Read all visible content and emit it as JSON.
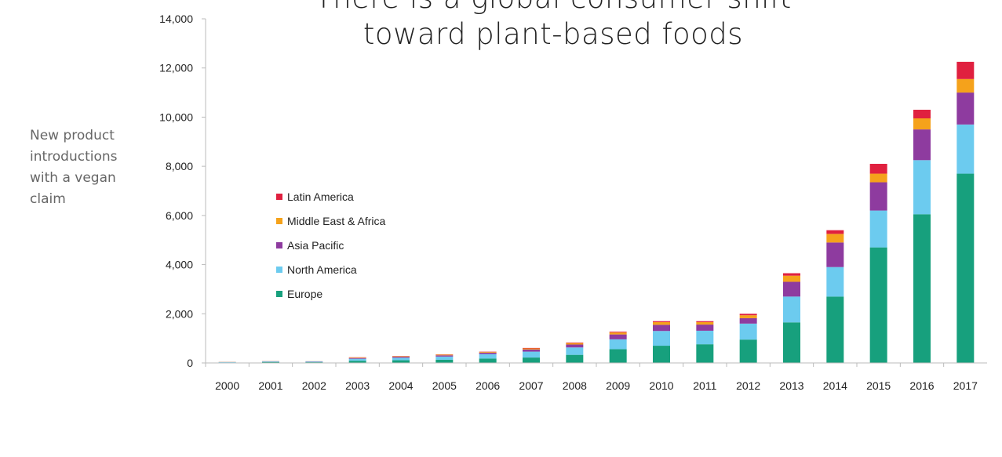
{
  "title_lines": [
    "There is a global consumer shift",
    "toward plant-based foods"
  ],
  "ylabel_lines": [
    "New product",
    "introductions",
    "with a vegan",
    "claim"
  ],
  "chart_data": {
    "type": "bar",
    "stacked": true,
    "title": "There is a global consumer shift toward plant-based foods",
    "ylabel": "New product introductions with a vegan claim",
    "xlabel": "",
    "ylim": [
      0,
      14000
    ],
    "yticks": [
      0,
      2000,
      4000,
      6000,
      8000,
      10000,
      12000,
      14000
    ],
    "ytick_labels": [
      "0",
      "2,000",
      "4,000",
      "6,000",
      "8,000",
      "10,000",
      "12,000",
      "14,000"
    ],
    "categories": [
      "2000",
      "2001",
      "2002",
      "2003",
      "2004",
      "2005",
      "2006",
      "2007",
      "2008",
      "2009",
      "2010",
      "2011",
      "2012",
      "2013",
      "2014",
      "2015",
      "2016",
      "2017"
    ],
    "legend_position": "center-left",
    "series": [
      {
        "name": "Europe",
        "color": "#17a07d",
        "values": [
          20,
          40,
          30,
          90,
          110,
          130,
          180,
          220,
          330,
          560,
          700,
          760,
          950,
          1650,
          2700,
          4700,
          6050,
          7700
        ]
      },
      {
        "name": "North America",
        "color": "#6ccbef",
        "values": [
          15,
          20,
          25,
          80,
          100,
          130,
          180,
          240,
          300,
          400,
          600,
          550,
          650,
          1050,
          1200,
          1500,
          2200,
          2000
        ]
      },
      {
        "name": "Asia Pacific",
        "color": "#8e3b9f",
        "values": [
          5,
          10,
          10,
          30,
          40,
          50,
          60,
          90,
          120,
          200,
          250,
          250,
          220,
          600,
          1000,
          1150,
          1250,
          1300
        ]
      },
      {
        "name": "Middle East & Africa",
        "color": "#f5a21b",
        "values": [
          5,
          5,
          5,
          20,
          20,
          30,
          30,
          40,
          60,
          80,
          110,
          100,
          120,
          250,
          350,
          350,
          450,
          550
        ]
      },
      {
        "name": "Latin America",
        "color": "#e0203f",
        "values": [
          0,
          0,
          0,
          10,
          10,
          10,
          10,
          20,
          20,
          30,
          40,
          40,
          60,
          100,
          150,
          400,
          350,
          700
        ]
      }
    ],
    "legend_order": [
      "Latin America",
      "Middle East & Africa",
      "Asia Pacific",
      "North America",
      "Europe"
    ]
  }
}
